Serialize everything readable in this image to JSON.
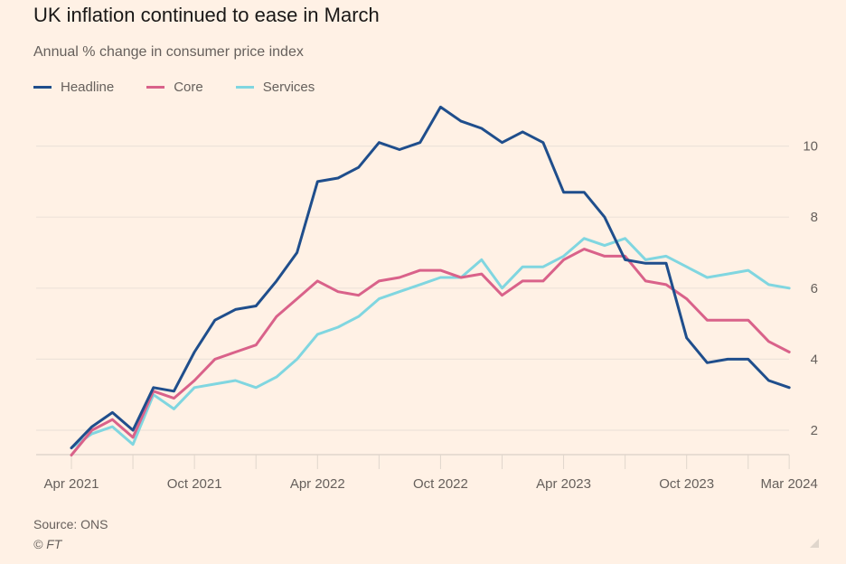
{
  "title": "UK inflation continued to ease in March",
  "subtitle": "Annual % change in consumer price index",
  "source": "Source: ONS",
  "copyright": "© FT",
  "colors": {
    "background": "#FFF1E5",
    "headline": "#1F4E8C",
    "core": "#D9628A",
    "services": "#80D6E0"
  },
  "chart_data": {
    "type": "line",
    "title": "UK inflation continued to ease in March",
    "subtitle": "Annual % change in consumer price index",
    "xlabel": "",
    "ylabel": "",
    "ylim": [
      1.3,
      11.5
    ],
    "yticks": [
      2,
      4,
      6,
      8,
      10
    ],
    "grid": true,
    "legend": "top-left",
    "x": [
      "Apr 2021",
      "May 2021",
      "Jun 2021",
      "Jul 2021",
      "Aug 2021",
      "Sep 2021",
      "Oct 2021",
      "Nov 2021",
      "Dec 2021",
      "Jan 2022",
      "Feb 2022",
      "Mar 2022",
      "Apr 2022",
      "May 2022",
      "Jun 2022",
      "Jul 2022",
      "Aug 2022",
      "Sep 2022",
      "Oct 2022",
      "Nov 2022",
      "Dec 2022",
      "Jan 2023",
      "Feb 2023",
      "Mar 2023",
      "Apr 2023",
      "May 2023",
      "Jun 2023",
      "Jul 2023",
      "Aug 2023",
      "Sep 2023",
      "Oct 2023",
      "Nov 2023",
      "Dec 2023",
      "Jan 2024",
      "Feb 2024",
      "Mar 2024"
    ],
    "xtick_labels": [
      {
        "label": "Apr 2021",
        "index": 0
      },
      {
        "label": "Oct 2021",
        "index": 6
      },
      {
        "label": "Apr 2022",
        "index": 12
      },
      {
        "label": "Oct 2022",
        "index": 18
      },
      {
        "label": "Apr 2023",
        "index": 24
      },
      {
        "label": "Oct 2023",
        "index": 30
      },
      {
        "label": "Mar 2024",
        "index": 35
      }
    ],
    "xtick_marks": [
      0,
      3,
      6,
      9,
      12,
      15,
      18,
      21,
      24,
      27,
      30,
      33,
      35
    ],
    "series": [
      {
        "name": "Headline",
        "color": "#1F4E8C",
        "values": [
          1.5,
          2.1,
          2.5,
          2.0,
          3.2,
          3.1,
          4.2,
          5.1,
          5.4,
          5.5,
          6.2,
          7.0,
          9.0,
          9.1,
          9.4,
          10.1,
          9.9,
          10.1,
          11.1,
          10.7,
          10.5,
          10.1,
          10.4,
          10.1,
          8.7,
          8.7,
          8.0,
          6.8,
          6.7,
          6.7,
          4.6,
          3.9,
          4.0,
          4.0,
          3.4,
          3.2
        ]
      },
      {
        "name": "Core",
        "color": "#D9628A",
        "values": [
          1.3,
          2.0,
          2.3,
          1.8,
          3.1,
          2.9,
          3.4,
          4.0,
          4.2,
          4.4,
          5.2,
          5.7,
          6.2,
          5.9,
          5.8,
          6.2,
          6.3,
          6.5,
          6.5,
          6.3,
          6.4,
          5.8,
          6.2,
          6.2,
          6.8,
          7.1,
          6.9,
          6.9,
          6.2,
          6.1,
          5.7,
          5.1,
          5.1,
          5.1,
          4.5,
          4.2
        ]
      },
      {
        "name": "Services",
        "color": "#80D6E0",
        "values": [
          1.5,
          1.9,
          2.1,
          1.6,
          3.0,
          2.6,
          3.2,
          3.3,
          3.4,
          3.2,
          3.5,
          4.0,
          4.7,
          4.9,
          5.2,
          5.7,
          5.9,
          6.1,
          6.3,
          6.3,
          6.8,
          6.0,
          6.6,
          6.6,
          6.9,
          7.4,
          7.2,
          7.4,
          6.8,
          6.9,
          6.6,
          6.3,
          6.4,
          6.5,
          6.1,
          6.0
        ]
      }
    ]
  }
}
